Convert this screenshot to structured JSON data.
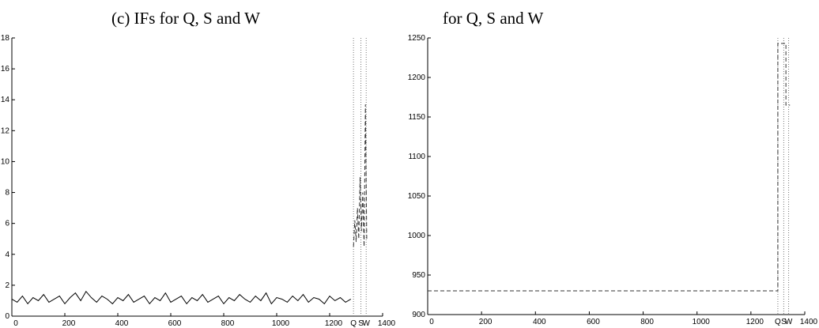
{
  "chart_data": [
    {
      "type": "line",
      "title": "(c) IFs for Q, S and W",
      "xlim": [
        0,
        1400
      ],
      "xticks": [
        0,
        200,
        400,
        600,
        800,
        1000,
        1200,
        1400
      ],
      "ylim": [
        0,
        18
      ],
      "yticks": [
        0,
        2,
        4,
        6,
        8,
        10,
        12,
        14,
        16,
        18
      ],
      "markers": [
        {
          "label": "Q",
          "x": 1290
        },
        {
          "label": "S",
          "x": 1318
        },
        {
          "label": "W",
          "x": 1338
        }
      ],
      "series": [
        {
          "color": "#000000",
          "dash": "solid",
          "x": [
            0,
            20,
            40,
            60,
            80,
            100,
            120,
            140,
            160,
            180,
            200,
            220,
            240,
            260,
            280,
            300,
            320,
            340,
            360,
            380,
            400,
            420,
            440,
            460,
            480,
            500,
            520,
            540,
            560,
            580,
            600,
            620,
            640,
            660,
            680,
            700,
            720,
            740,
            760,
            780,
            800,
            820,
            840,
            860,
            880,
            900,
            920,
            940,
            960,
            980,
            1000,
            1020,
            1040,
            1060,
            1080,
            1100,
            1120,
            1140,
            1160,
            1180,
            1200,
            1220,
            1240,
            1260,
            1280
          ],
          "values": [
            1.1,
            0.9,
            1.3,
            0.8,
            1.2,
            1.0,
            1.4,
            0.9,
            1.1,
            1.3,
            0.8,
            1.2,
            1.5,
            1.0,
            1.6,
            1.2,
            0.9,
            1.3,
            1.1,
            0.8,
            1.2,
            1.0,
            1.4,
            0.9,
            1.1,
            1.3,
            0.8,
            1.2,
            1.0,
            1.5,
            0.9,
            1.1,
            1.3,
            0.8,
            1.2,
            1.0,
            1.4,
            0.9,
            1.1,
            1.3,
            0.8,
            1.2,
            1.0,
            1.4,
            1.1,
            0.9,
            1.3,
            1.0,
            1.5,
            0.8,
            1.2,
            1.1,
            0.9,
            1.3,
            1.0,
            1.4,
            0.9,
            1.2,
            1.1,
            0.8,
            1.3,
            1.0,
            1.2,
            0.9,
            1.1
          ]
        },
        {
          "color": "#333333",
          "dash": "dashed",
          "x": [
            1290,
            1295,
            1300,
            1305,
            1310,
            1315,
            1320,
            1325,
            1330,
            1335,
            1340
          ],
          "values": [
            4.5,
            6.2,
            4.8,
            7,
            5,
            9,
            5.5,
            8,
            4.5,
            13.7,
            5
          ]
        }
      ]
    },
    {
      "type": "line",
      "title": "for Q, S and W",
      "xlim": [
        0,
        1400
      ],
      "xticks": [
        0,
        200,
        400,
        600,
        800,
        1000,
        1200,
        1400
      ],
      "ylim": [
        900,
        1250
      ],
      "yticks": [
        900,
        950,
        1000,
        1050,
        1100,
        1150,
        1200,
        1250
      ],
      "markers": [
        {
          "label": "Q",
          "x": 1300
        },
        {
          "label": "S",
          "x": 1322
        },
        {
          "label": "W",
          "x": 1340
        }
      ],
      "series": [
        {
          "color": "#333333",
          "dash": "dashed",
          "x": [
            0,
            1300,
            1300,
            1330,
            1330,
            1345
          ],
          "values": [
            930,
            930,
            1243,
            1243,
            1165,
            1165
          ]
        }
      ]
    }
  ]
}
